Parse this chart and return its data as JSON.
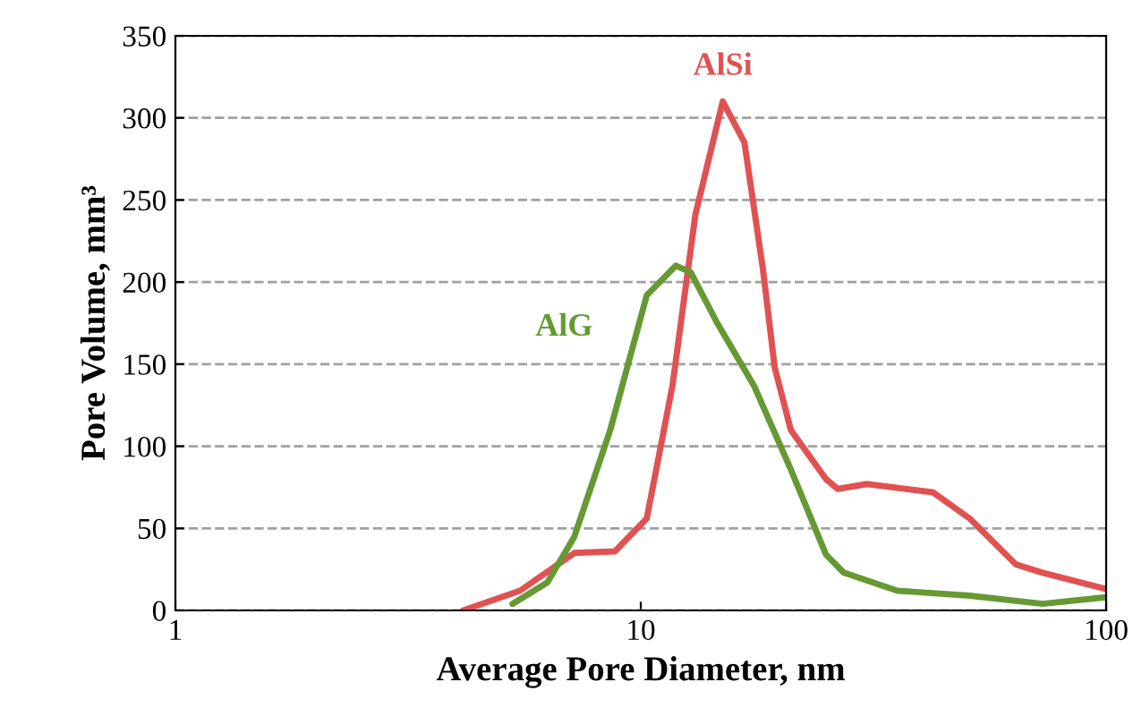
{
  "chart_data": {
    "type": "line",
    "xlabel": "Average Pore Diameter, nm",
    "ylabel": "Pore Volume, mm³",
    "log": "x",
    "xlim": [
      1,
      100
    ],
    "xticks": [
      1,
      10,
      100
    ],
    "ylim": [
      0,
      350
    ],
    "yticks": [
      0,
      50,
      100,
      150,
      200,
      250,
      300,
      350
    ],
    "grid": "y",
    "marker": "none",
    "line_style": "solid",
    "series": [
      {
        "name": "AlSi",
        "color": "#e05252",
        "x": [
          4.15,
          5.5,
          7.2,
          8.8,
          10.3,
          11.7,
          13.1,
          15.0,
          16.7,
          18.3,
          19.4,
          21.0,
          25.0,
          26.5,
          30.6,
          42.4,
          50.9,
          64,
          73,
          100
        ],
        "values": [
          0,
          12,
          35,
          36,
          56,
          137,
          241,
          310,
          285,
          208,
          148,
          110,
          80,
          74,
          77,
          72,
          56,
          28,
          23,
          13
        ]
      },
      {
        "name": "AlG",
        "color": "#669933",
        "x": [
          5.3,
          6.3,
          7.2,
          8.6,
          10.3,
          11.9,
          12.8,
          14.6,
          17.5,
          21,
          25,
          27.3,
          35.6,
          50.9,
          73,
          100
        ],
        "values": [
          4,
          17,
          45,
          110,
          192,
          210,
          206,
          175,
          137,
          86,
          34,
          23,
          12,
          9,
          4,
          8
        ]
      }
    ]
  }
}
